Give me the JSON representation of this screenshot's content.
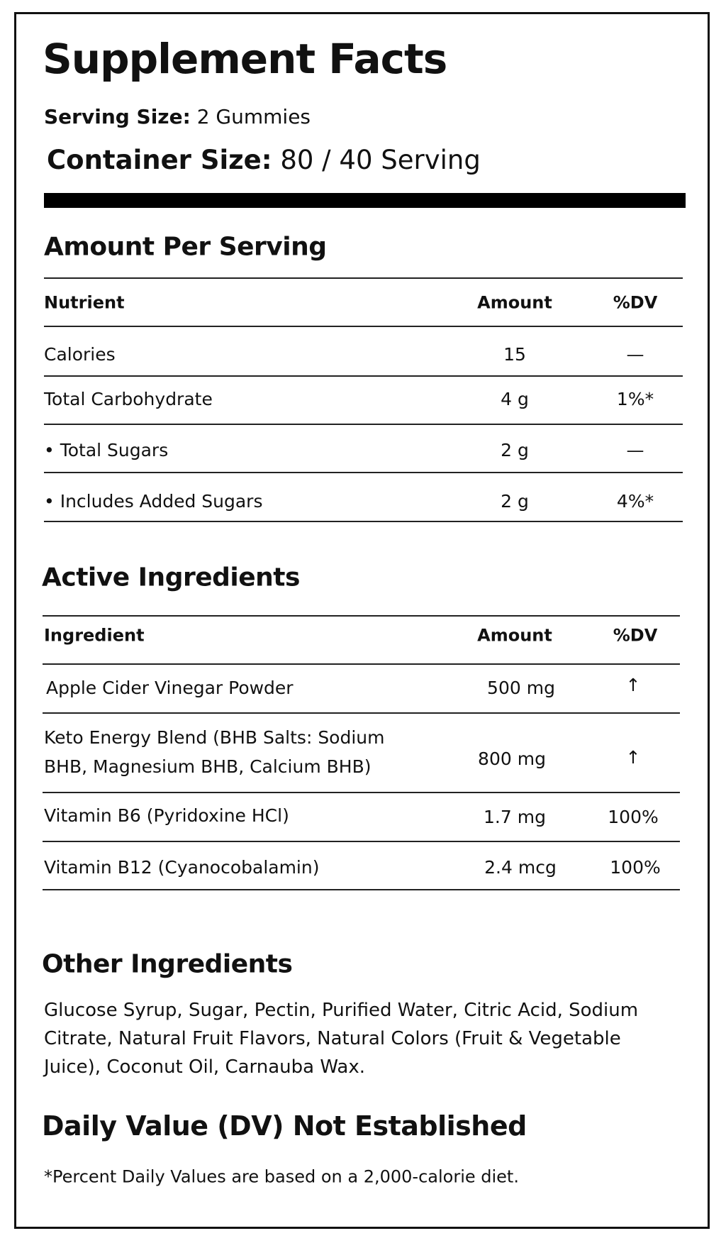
{
  "title": "Supplement Facts",
  "serving_size": {
    "label": "Serving Size:",
    "value": "2 Gummies"
  },
  "container_size": {
    "label": "Container Size:",
    "value": "80 / 40 Serving"
  },
  "amount_per_serving": {
    "heading": "Amount Per Serving",
    "columns": [
      "Nutrient",
      "Amount",
      "%DV"
    ],
    "rows": [
      {
        "name": "Calories",
        "amount": "15",
        "dv": "—"
      },
      {
        "name": "Total Carbohydrate",
        "amount": "4 g",
        "dv": "1%*"
      },
      {
        "name": "• Total Sugars",
        "amount": "2 g",
        "dv": "—"
      },
      {
        "name": "• Includes Added Sugars",
        "amount": "2 g",
        "dv": "4%*"
      }
    ]
  },
  "active_ingredients": {
    "heading": "Active Ingredients",
    "columns": [
      "Ingredient",
      "Amount",
      "%DV"
    ],
    "rows": [
      {
        "name": "Apple Cider Vinegar Powder",
        "amount": "500 mg",
        "dv": "↑"
      },
      {
        "name_line1": "Keto Energy Blend (BHB Salts: Sodium",
        "name_line2": "BHB, Magnesium BHB, Calcium BHB)",
        "amount": "800 mg",
        "dv": "↑"
      },
      {
        "name": "Vitamin B6 (Pyridoxine HCl)",
        "amount": "1.7 mg",
        "dv": "100%"
      },
      {
        "name": "Vitamin B12 (Cyanocobalamin)",
        "amount": "2.4 mcg",
        "dv": "100%"
      }
    ]
  },
  "other_ingredients": {
    "heading": "Other Ingredients",
    "text": "Glucose Syrup, Sugar, Pectin, Purified Water, Citric Acid, Sodium Citrate, Natural Fruit Flavors, Natural Colors (Fruit & Vegetable Juice), Coconut Oil, Carnauba Wax."
  },
  "daily_value_heading": "Daily Value (DV) Not Established",
  "footnote": "*Percent Daily Values are based on a 2,000-calorie diet."
}
